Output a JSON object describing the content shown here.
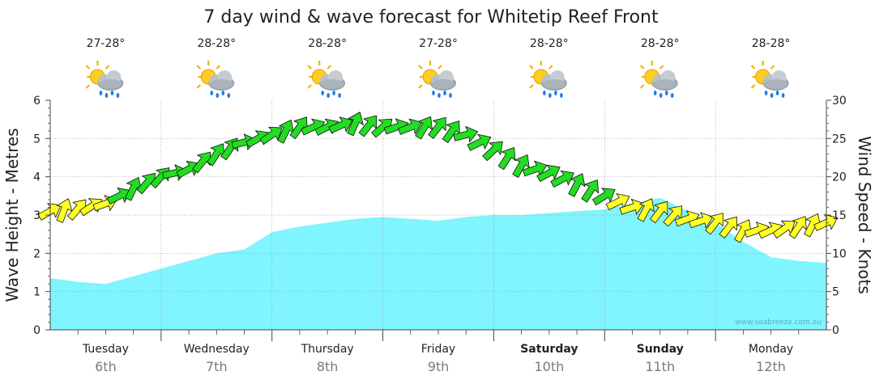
{
  "chart_data": {
    "type": "area",
    "title": "7 day wind & wave forecast for Whitetip Reef Front",
    "ylabel": "Wave Height - Metres",
    "y2label": "Wind Speed - Knots",
    "ylim": [
      0,
      6
    ],
    "y2lim": [
      0,
      30
    ],
    "yticks": [
      "0",
      "1",
      "2",
      "3",
      "4",
      "5",
      "6"
    ],
    "y2ticks": [
      "0",
      "5",
      "10",
      "15",
      "20",
      "25",
      "30"
    ],
    "x_unit": "hours from Tuesday 6th 00:00",
    "grid": true,
    "watermark": "www.seabreeze.com.au",
    "days": [
      {
        "name": "Tuesday",
        "date": "6th",
        "bold": false,
        "temp": "27-28°",
        "icon": "cloud-sun-rain-icon"
      },
      {
        "name": "Wednesday",
        "date": "7th",
        "bold": false,
        "temp": "28-28°",
        "icon": "cloud-sun-rain-icon"
      },
      {
        "name": "Thursday",
        "date": "8th",
        "bold": false,
        "temp": "28-28°",
        "icon": "cloud-sun-rain-icon"
      },
      {
        "name": "Friday",
        "date": "9th",
        "bold": false,
        "temp": "27-28°",
        "icon": "cloud-sun-rain-icon"
      },
      {
        "name": "Saturday",
        "date": "10th",
        "bold": true,
        "temp": "28-28°",
        "icon": "cloud-sun-rain-icon"
      },
      {
        "name": "Sunday",
        "date": "11th",
        "bold": true,
        "temp": "28-28°",
        "icon": "cloud-sun-rain-icon"
      },
      {
        "name": "Monday",
        "date": "12th",
        "bold": false,
        "temp": "28-28°",
        "icon": "cloud-sun-rain-icon"
      }
    ],
    "wave": {
      "name": "Wave Height",
      "color": "#80f4ff",
      "x": [
        0,
        6,
        12,
        18,
        24,
        30,
        36,
        42,
        48,
        54,
        60,
        66,
        72,
        78,
        84,
        90,
        96,
        102,
        108,
        114,
        120,
        126,
        132,
        138,
        144,
        150,
        156,
        162,
        168
      ],
      "values": [
        1.35,
        1.25,
        1.2,
        1.4,
        1.6,
        1.8,
        2.0,
        2.1,
        2.55,
        2.7,
        2.8,
        2.9,
        2.95,
        2.9,
        2.85,
        2.95,
        3.0,
        3.0,
        3.05,
        3.1,
        3.15,
        3.3,
        3.45,
        3.1,
        2.8,
        2.3,
        1.9,
        1.8,
        1.75
      ]
    },
    "wind": {
      "name": "Wind Speed",
      "color_strong": "#22dd22",
      "color_light": "#ffff22",
      "x": [
        0,
        6,
        12,
        18,
        24,
        30,
        36,
        42,
        48,
        54,
        60,
        66,
        72,
        78,
        84,
        90,
        96,
        102,
        108,
        114,
        120,
        126,
        132,
        138,
        144,
        150,
        156,
        162,
        168
      ],
      "values": [
        15.5,
        15.8,
        16.5,
        18.5,
        20,
        21,
        23,
        24.5,
        25.5,
        26.5,
        26.5,
        27,
        26.5,
        26.5,
        26.5,
        25.5,
        23.5,
        21.5,
        20.5,
        19,
        17.5,
        16,
        15.5,
        14.5,
        14,
        13,
        13,
        13.5,
        14
      ]
    }
  }
}
